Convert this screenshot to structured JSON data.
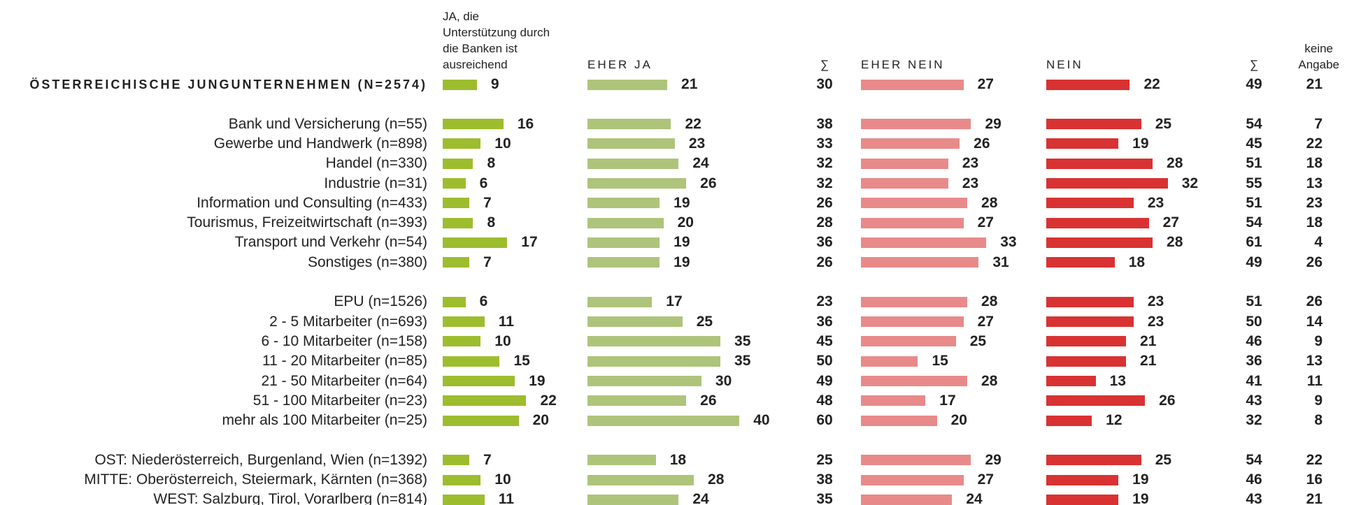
{
  "chart_data": {
    "type": "bar",
    "categories": [
      "ÖSTERREICHISCHE JUNGUNTERNEHMEN (N=2574)",
      null,
      "Bank und Versicherung (n=55)",
      "Gewerbe und Handwerk (n=898)",
      "Handel (n=330)",
      "Industrie (n=31)",
      "Information und Consulting (n=433)",
      "Tourismus, Freizeitwirtschaft (n=393)",
      "Transport und Verkehr (n=54)",
      "Sonstiges (n=380)",
      null,
      "EPU (n=1526)",
      "2 - 5 Mitarbeiter (n=693)",
      "6 - 10 Mitarbeiter (n=158)",
      "11 - 20 Mitarbeiter (n=85)",
      "21 - 50 Mitarbeiter (n=64)",
      "51 - 100 Mitarbeiter (n=23)",
      "mehr als 100 Mitarbeiter (n=25)",
      null,
      "OST: Niederösterreich, Burgenland, Wien (n=1392)",
      "MITTE: Oberösterreich, Steiermark, Kärnten (n=368)",
      "WEST: Salzburg, Tirol, Vorarlberg (n=814)"
    ],
    "series": [
      {
        "name": "JA, die\nUnterstützung durch\ndie Banken ist\nausreichend",
        "color": "#9dbd2e",
        "values": [
          9,
          null,
          16,
          10,
          8,
          6,
          7,
          8,
          17,
          7,
          null,
          6,
          11,
          10,
          15,
          19,
          22,
          20,
          null,
          7,
          10,
          11
        ]
      },
      {
        "name": "EHER JA",
        "color": "#aec47a",
        "values": [
          21,
          null,
          22,
          23,
          24,
          26,
          19,
          20,
          19,
          19,
          null,
          17,
          25,
          35,
          35,
          30,
          26,
          40,
          null,
          18,
          28,
          24
        ]
      },
      {
        "name": "∑",
        "values": [
          30,
          null,
          38,
          33,
          32,
          32,
          26,
          28,
          36,
          26,
          null,
          23,
          36,
          45,
          50,
          49,
          48,
          60,
          null,
          25,
          38,
          35
        ]
      },
      {
        "name": "EHER NEIN",
        "color": "#e88a8a",
        "values": [
          27,
          null,
          29,
          26,
          23,
          23,
          28,
          27,
          33,
          31,
          null,
          28,
          27,
          25,
          15,
          28,
          17,
          20,
          null,
          29,
          27,
          24
        ]
      },
      {
        "name": "NEIN",
        "color": "#d93232",
        "values": [
          22,
          null,
          25,
          19,
          28,
          32,
          23,
          27,
          28,
          18,
          null,
          23,
          23,
          21,
          21,
          13,
          26,
          12,
          null,
          25,
          19,
          19
        ]
      },
      {
        "name": "∑",
        "values": [
          49,
          null,
          54,
          45,
          51,
          55,
          51,
          54,
          61,
          49,
          null,
          51,
          50,
          46,
          36,
          41,
          43,
          32,
          null,
          54,
          46,
          43
        ]
      },
      {
        "name": "keine\nAngabe",
        "values": [
          21,
          null,
          7,
          22,
          18,
          13,
          23,
          18,
          4,
          26,
          null,
          26,
          14,
          9,
          13,
          11,
          9,
          8,
          null,
          22,
          16,
          21
        ]
      }
    ]
  }
}
